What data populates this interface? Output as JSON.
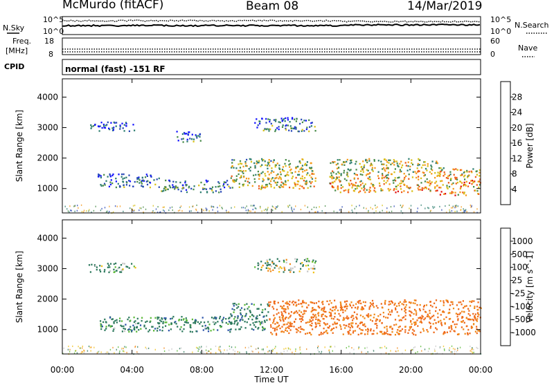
{
  "header": {
    "station": "McMurdo (fitACF)",
    "beam": "Beam 08",
    "date": "14/Mar/2019"
  },
  "top_panels": {
    "noise": {
      "left_label": "N.Sky",
      "right_label": "N.Search",
      "ticks": [
        "10^5",
        "10^0"
      ]
    },
    "freq": {
      "left_label_1": "Freq.",
      "left_label_2": "[MHz]",
      "ticks_left": [
        "18",
        "8"
      ],
      "right_label": "Nave",
      "ticks_right": [
        "60",
        "0"
      ]
    },
    "cpid": {
      "label": "CPID",
      "text": "normal (fast) -151 RF"
    }
  },
  "chart_data": [
    {
      "type": "heatmap",
      "title": "",
      "xlabel": "",
      "ylabel": "Slant Range [km]",
      "xlim": [
        "00:00",
        "24:00"
      ],
      "ylim": [
        200,
        4600
      ],
      "y_ticks": [
        1000,
        2000,
        3000,
        4000
      ],
      "colorbar": {
        "label": "Power [dB]",
        "ticks": [
          4,
          8,
          12,
          16,
          20,
          24,
          28
        ],
        "colors": [
          "#1515ff",
          "#2a4ab7",
          "#2f7f70",
          "#4a8c4a",
          "#d8c01a",
          "#f59a1a",
          "#ef5c1a",
          "#e01010"
        ]
      },
      "bands": [
        {
          "t_start": 2.0,
          "t_end": 5.6,
          "range_low": 1050,
          "range_high": 1500,
          "value": 10
        },
        {
          "t_start": 5.6,
          "t_end": 9.6,
          "range_low": 900,
          "range_high": 1300,
          "value": 12
        },
        {
          "t_start": 9.6,
          "t_end": 14.5,
          "range_low": 1000,
          "range_high": 2000,
          "value": 20
        },
        {
          "t_start": 15.3,
          "t_end": 21.5,
          "range_low": 900,
          "range_high": 2000,
          "value": 22
        },
        {
          "t_start": 21.5,
          "t_end": 24.0,
          "range_low": 800,
          "range_high": 1700,
          "value": 24
        },
        {
          "t_start": 1.5,
          "t_end": 4.2,
          "range_low": 2900,
          "range_high": 3200,
          "value": 9
        },
        {
          "t_start": 6.5,
          "t_end": 8.0,
          "range_low": 2550,
          "range_high": 2900,
          "value": 10
        },
        {
          "t_start": 11.0,
          "t_end": 14.5,
          "range_low": 2900,
          "range_high": 3350,
          "value": 11
        }
      ]
    },
    {
      "type": "heatmap",
      "title": "",
      "xlabel": "Time UT",
      "ylabel": "Slant Range [km]",
      "xlim": [
        "00:00",
        "24:00"
      ],
      "x_ticks": [
        "00:00",
        "04:00",
        "08:00",
        "12:00",
        "16:00",
        "20:00",
        "00:00"
      ],
      "ylim": [
        200,
        4600
      ],
      "y_ticks": [
        1000,
        2000,
        3000,
        4000
      ],
      "colorbar": {
        "label": "Velocity [m s^-1]",
        "ticks": [
          1000,
          500,
          100,
          25,
          -25,
          -100,
          -500,
          -1000
        ],
        "colors": [
          "#1f2fbf",
          "#2d55aa",
          "#2e7a5e",
          "#5dba3a",
          "#c8c8c8",
          "#f2c21a",
          "#f18b1a",
          "#ef6a1a",
          "#e01414"
        ]
      },
      "bands": [
        {
          "t_start": 2.0,
          "t_end": 9.6,
          "range_low": 950,
          "range_high": 1450,
          "value": 150
        },
        {
          "t_start": 9.6,
          "t_end": 11.8,
          "range_low": 1000,
          "range_high": 1900,
          "value": 150
        },
        {
          "t_start": 11.8,
          "t_end": 24.0,
          "range_low": 850,
          "range_high": 2000,
          "value": -300
        },
        {
          "t_start": 1.5,
          "t_end": 4.2,
          "range_low": 2900,
          "range_high": 3200,
          "value": 80
        },
        {
          "t_start": 11.0,
          "t_end": 14.5,
          "range_low": 2900,
          "range_high": 3350,
          "value": 20
        }
      ]
    }
  ]
}
